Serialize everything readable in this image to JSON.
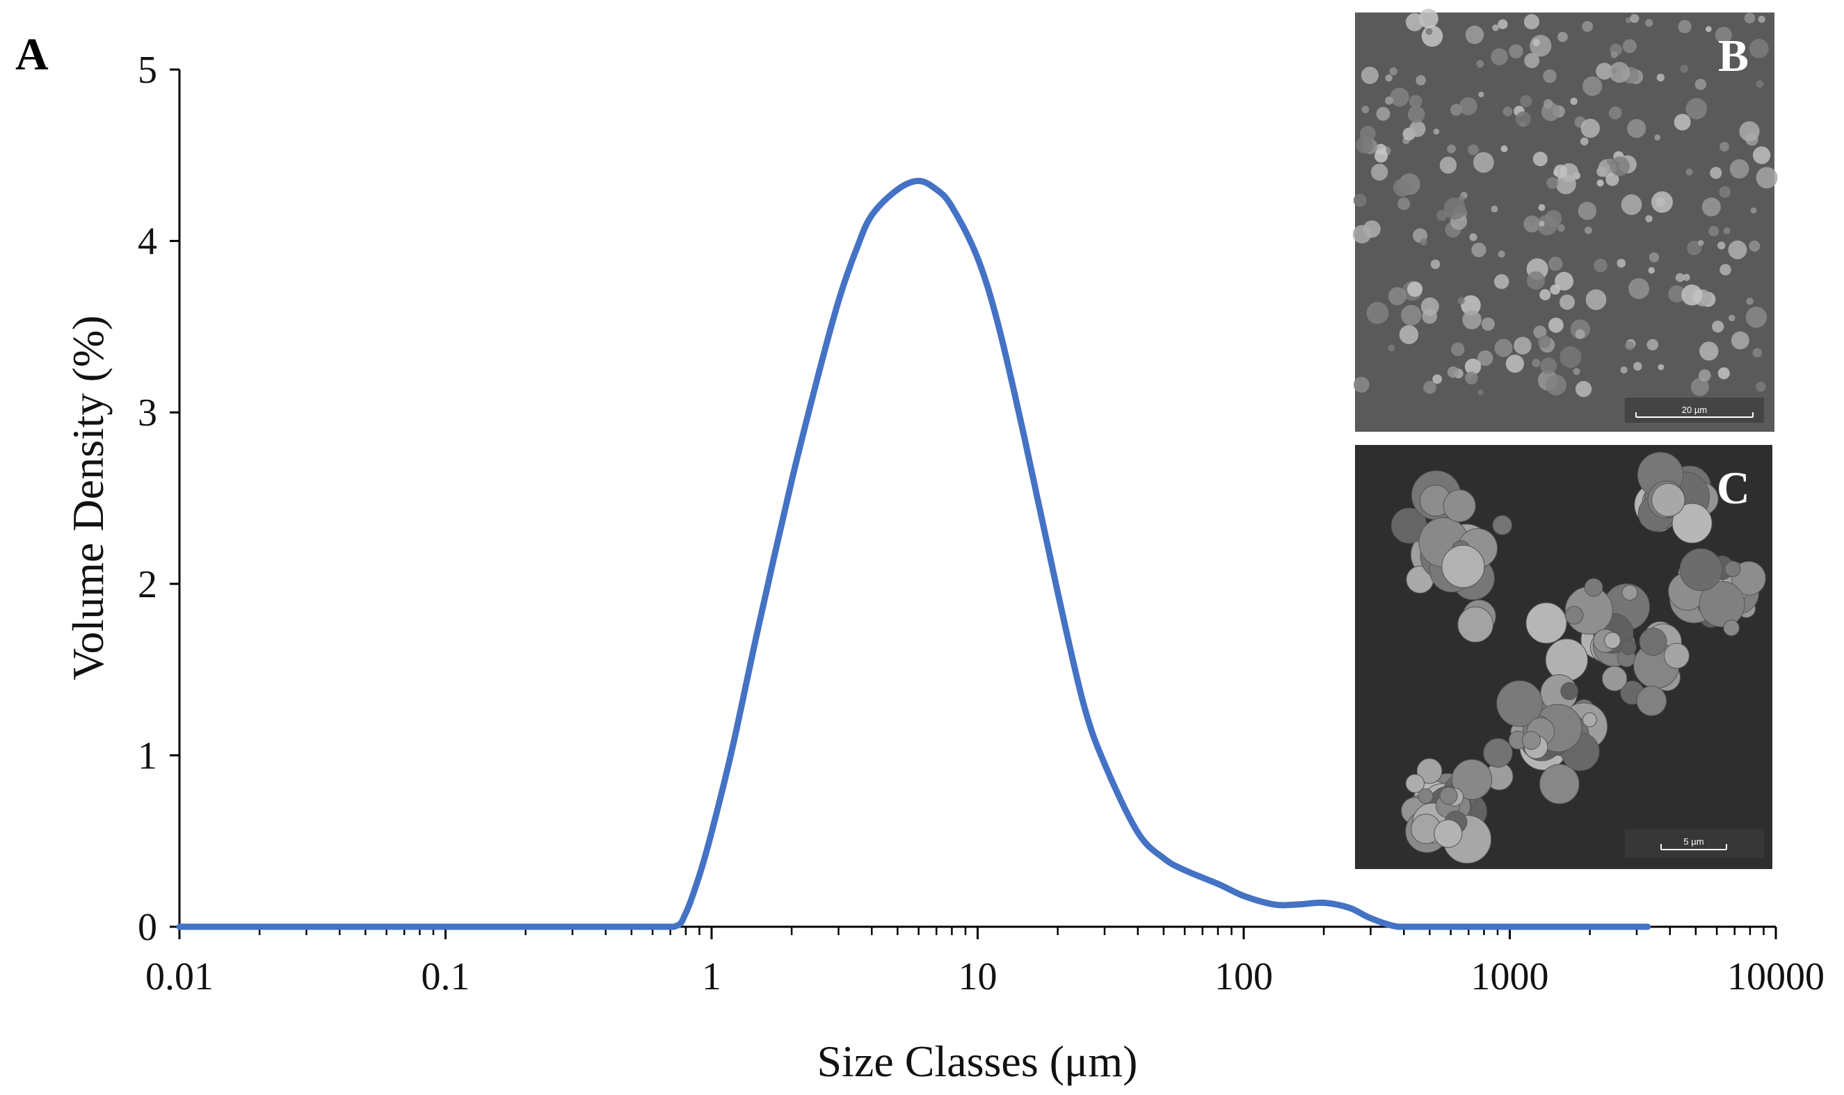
{
  "panels": {
    "main": "A",
    "inset_top": "B",
    "inset_bottom": "C"
  },
  "insets": {
    "top_scale_bar": "20 µm",
    "bottom_scale_bar": "5 µm"
  },
  "colors": {
    "series": "#4472C4",
    "axis": "#000000",
    "sem_top_bg": "#5a5a5a",
    "sem_bottom_bg": "#2e2e2e"
  },
  "chart_data": {
    "type": "line",
    "title": "",
    "xlabel": "Size Classes (μm)",
    "ylabel": "Volume Density (%)",
    "xscale": "log",
    "xlim": [
      0.01,
      10000
    ],
    "ylim": [
      0,
      5
    ],
    "xticks": [
      "0.01",
      "0.1",
      "1",
      "10",
      "100",
      "1000",
      "10000"
    ],
    "yticks": [
      "0",
      "1",
      "2",
      "3",
      "4",
      "5"
    ],
    "grid": false,
    "series": [
      {
        "x": [
          0.01,
          0.1,
          0.5,
          0.72,
          0.8,
          0.9,
          1.0,
          1.2,
          1.5,
          2.0,
          2.5,
          3.0,
          3.5,
          4.0,
          5.0,
          6.0,
          7.0,
          8.0,
          10.0,
          12.0,
          15.0,
          20.0,
          25.0,
          30.0,
          40.0,
          50.0,
          60.0,
          80.0,
          100.0,
          130.0,
          160.0,
          200.0,
          250.0,
          300.0,
          380.0,
          500.0,
          1000.0,
          3300.0
        ],
        "y": [
          0,
          0,
          0,
          0,
          0.08,
          0.3,
          0.55,
          1.05,
          1.75,
          2.6,
          3.2,
          3.65,
          3.95,
          4.15,
          4.3,
          4.35,
          4.3,
          4.2,
          3.9,
          3.5,
          2.85,
          1.95,
          1.3,
          0.95,
          0.55,
          0.4,
          0.33,
          0.25,
          0.18,
          0.13,
          0.13,
          0.14,
          0.11,
          0.05,
          0,
          0,
          0,
          0
        ]
      }
    ]
  }
}
